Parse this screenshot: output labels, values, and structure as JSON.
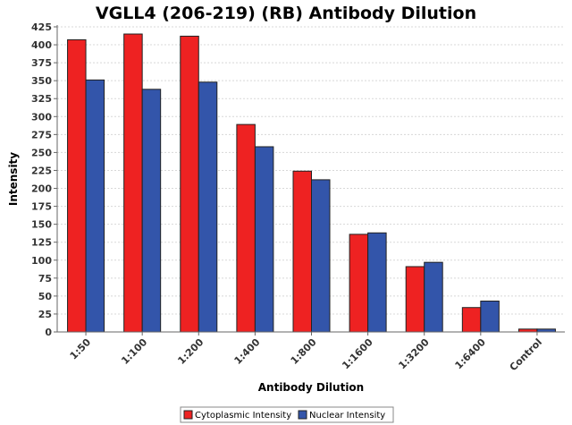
{
  "chart_data": {
    "type": "bar",
    "title": "VGLL4 (206-219) (RB) Antibody Dilution",
    "xlabel": "Antibody Dilution",
    "ylabel": "Intensity",
    "ylim": [
      0,
      425
    ],
    "yticks": [
      0,
      25,
      50,
      75,
      100,
      125,
      150,
      175,
      200,
      225,
      250,
      275,
      300,
      325,
      350,
      375,
      400,
      425
    ],
    "grid": true,
    "legend_position": "bottom-center",
    "categories": [
      "1:50",
      "1:100",
      "1:200",
      "1:400",
      "1:800",
      "1:1600",
      "1:3200",
      "1:6400",
      "Control"
    ],
    "series": [
      {
        "name": "Cytoplasmic Intensity",
        "color": "#ee2222",
        "values": [
          407,
          415,
          412,
          289,
          224,
          136,
          91,
          34,
          4
        ]
      },
      {
        "name": "Nuclear Intensity",
        "color": "#3355aa",
        "values": [
          351,
          338,
          348,
          258,
          212,
          138,
          97,
          43,
          4
        ]
      }
    ]
  }
}
